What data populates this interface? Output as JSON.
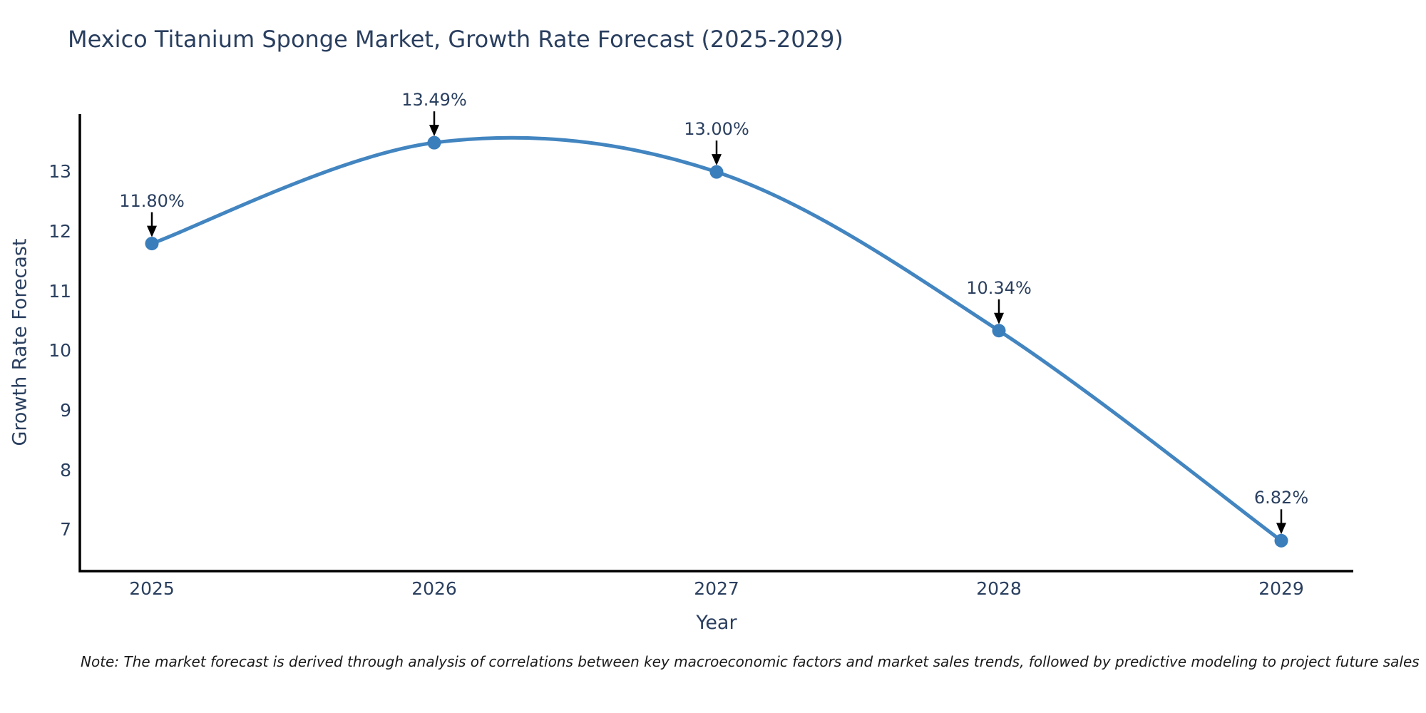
{
  "page": {
    "background_color": "#ffffff"
  },
  "chart_data": {
    "type": "line",
    "title": "Mexico Titanium Sponge Market, Growth Rate Forecast (2025-2029)",
    "xlabel": "Year",
    "ylabel": "Growth Rate Forecast",
    "categories": [
      "2025",
      "2026",
      "2027",
      "2028",
      "2029"
    ],
    "series": [
      {
        "name": "Growth Rate Forecast",
        "values": [
          11.8,
          13.49,
          13.0,
          10.34,
          6.82
        ]
      }
    ],
    "point_labels": [
      "11.80%",
      "13.49%",
      "13.00%",
      "10.34%",
      "6.82%"
    ],
    "y_ticks": [
      7,
      8,
      9,
      10,
      11,
      12,
      13
    ],
    "ylim": [
      6.31,
      13.97
    ],
    "curve": "spline",
    "grid": false,
    "legend": "none",
    "annotations_style": "arrow-down-to-point",
    "colors": {
      "line": "#4285c0",
      "marker": "#3a7ebc",
      "arrow": "#000000",
      "axis": "#000000",
      "text": "#2a3f5f",
      "note_text": "#1a1a1a"
    },
    "note": "Note: The market forecast is derived through analysis of correlations between key macroeconomic factors and market sales trends, followed by predictive modeling to project future sales"
  }
}
